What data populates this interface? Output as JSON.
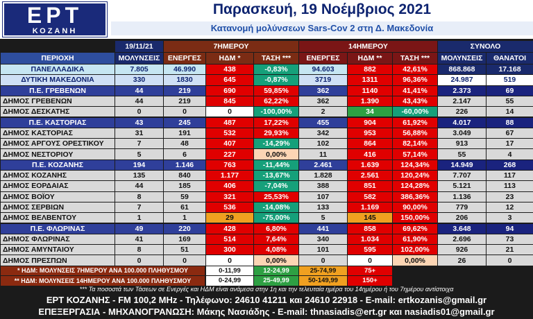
{
  "header": {
    "logo": "EPT",
    "logo_sub": "ΚΟΖΑΝΗ",
    "title": "Παρασκευή, 19 Νοέμβριος 2021",
    "subtitle": "Κατανομή μολύνσεων Sars-Cov 2 στη Δ. Μακεδονία"
  },
  "table": {
    "groups": [
      "19/11/21",
      "7ΗΜΕΡΟΥ",
      "14ΗΜΕΡΟΥ",
      "ΣΥΝΟΛΟ"
    ],
    "columns": [
      "ΠΕΡΙΟΧΗ",
      "ΜΟΛΥΝΣΕΙΣ",
      "ΕΝΕΡΓΕΣ",
      "ΗΔΜ *",
      "ΤΑΣΗ ***",
      "ΕΝΕΡΓΕΣ",
      "ΗΔΜ **",
      "ΤΑΣΗ ***",
      "ΜΟΛΥΝΣΕΙΣ",
      "ΘΑΝΑΤΟΙ"
    ],
    "rows": [
      [
        "ΠΑΝΕΛΛΑΔΙΚΑ",
        "7.805",
        "46.990",
        "438",
        "-0,83%",
        "94.603",
        "882",
        "42,61%",
        "868.868",
        "17.168"
      ],
      [
        "ΔΥΤΙΚΗ ΜΑΚΕΔΟΝΙΑ",
        "330",
        "1830",
        "645",
        "-0,87%",
        "3719",
        "1311",
        "96,36%",
        "24.987",
        "519"
      ],
      [
        "Π.Ε. ΓΡΕΒΕΝΩΝ",
        "44",
        "219",
        "690",
        "59,85%",
        "362",
        "1140",
        "41,41%",
        "2.373",
        "69"
      ],
      [
        "ΔΗΜΟΣ ΓΡΕΒΕΝΩΝ",
        "44",
        "219",
        "845",
        "62,22%",
        "362",
        "1.390",
        "43,43%",
        "2.147",
        "55"
      ],
      [
        "ΔΗΜΟΣ ΔΕΣΚΑΤΗΣ",
        "0",
        "0",
        "0",
        "-100,00%",
        "2",
        "34",
        "-60,00%",
        "226",
        "14"
      ],
      [
        "Π.Ε. ΚΑΣΤΟΡΙΑΣ",
        "43",
        "245",
        "487",
        "17,22%",
        "455",
        "904",
        "61,92%",
        "4.017",
        "88"
      ],
      [
        "ΔΗΜΟΣ ΚΑΣΤΟΡΙΑΣ",
        "31",
        "191",
        "532",
        "29,93%",
        "342",
        "953",
        "56,88%",
        "3.049",
        "67"
      ],
      [
        "ΔΗΜΟΣ ΑΡΓΟΥΣ ΟΡΕΣΤΙΚΟΥ",
        "7",
        "48",
        "407",
        "-14,29%",
        "102",
        "864",
        "82,14%",
        "913",
        "17"
      ],
      [
        "ΔΗΜΟΣ ΝΕΣΤΟΡΙΟΥ",
        "5",
        "6",
        "227",
        "0,00%",
        "11",
        "416",
        "57,14%",
        "55",
        "4"
      ],
      [
        "Π.Ε. ΚΟΖΑΝΗΣ",
        "194",
        "1.146",
        "763",
        "-11,44%",
        "2.461",
        "1.639",
        "124,34%",
        "14.949",
        "268"
      ],
      [
        "ΔΗΜΟΣ ΚΟΖΑΝΗΣ",
        "135",
        "840",
        "1.177",
        "-13,67%",
        "1.828",
        "2.561",
        "120,24%",
        "7.707",
        "117"
      ],
      [
        "ΔΗΜΟΣ ΕΟΡΔΑΙΑΣ",
        "44",
        "185",
        "406",
        "-7,04%",
        "388",
        "851",
        "124,28%",
        "5.121",
        "113"
      ],
      [
        "ΔΗΜΟΣ ΒΟΪΟΥ",
        "8",
        "59",
        "321",
        "25,53%",
        "107",
        "582",
        "386,36%",
        "1.136",
        "23"
      ],
      [
        "ΔΗΜΟΣ ΣΕΡΒΙΩΝ",
        "7",
        "61",
        "536",
        "-14,08%",
        "133",
        "1.169",
        "90,00%",
        "779",
        "12"
      ],
      [
        "ΔΗΜΟΣ ΒΕΛΒΕΝΤΟΥ",
        "1",
        "1",
        "29",
        "-75,00%",
        "5",
        "145",
        "150,00%",
        "206",
        "3"
      ],
      [
        "Π.Ε. ΦΛΩΡΙΝΑΣ",
        "49",
        "220",
        "428",
        "6,80%",
        "441",
        "858",
        "69,62%",
        "3.648",
        "94"
      ],
      [
        "ΔΗΜΟΣ ΦΛΩΡΙΝΑΣ",
        "41",
        "169",
        "514",
        "7,64%",
        "340",
        "1.034",
        "61,90%",
        "2.696",
        "73"
      ],
      [
        "ΔΗΜΟΣ ΑΜΥΝΤΑΙΟΥ",
        "8",
        "51",
        "300",
        "4,08%",
        "101",
        "595",
        "102,00%",
        "926",
        "21"
      ],
      [
        "ΔΗΜΟΣ ΠΡΕΣΠΩΝ",
        "0",
        "0",
        "0",
        "0,00%",
        "0",
        "0",
        "0,00%",
        "26",
        "0"
      ]
    ]
  },
  "legend": [
    {
      "label": "* ΗΔΜ: ΜΟΛΥΝΣΕΙΣ 7ΗΜΕΡΟΥ ΑΝΑ 100.000 ΠΛΗΘΥΣΜΟΥ",
      "ranges": [
        "0-11,99",
        "12-24,99",
        "25-74,99",
        "75+"
      ]
    },
    {
      "label": "** ΗΔΜ: ΜΟΛΥΝΣΕΙΣ 14ΗΜΕΡΟΥ ΑΝΑ 100.000 ΠΛΗΘΥΣΜΟΥ",
      "ranges": [
        "0-24,99",
        "25-49,99",
        "50-149,99",
        "150+"
      ]
    }
  ],
  "note": "*** Τα ποσοστά των Τάσεων σε Ενεργές και ΗΔΜ είναι ανάμεσα στην 1η και την τελευταία ημέρα του 14ημέρου ή του 7ημέρου αντίστοιχα",
  "footer": [
    "ΕΡΤ ΚΟΖΑΝΗΣ - FM 100,2 MHz - Τηλέφωνο:  24610 41211 και 24610 22918 - E-mail: ertkozanis@gmail.gr",
    "ΕΠΕΞΕΡΓΑΣΙΑ  -  ΜΗΧΑΝΟΓΡΑΝΩΣΗ: Μάκης Νασιάδης  -  E-mail: thnasiadis@ert.gr και nasiadis01@gmail.gr"
  ]
}
